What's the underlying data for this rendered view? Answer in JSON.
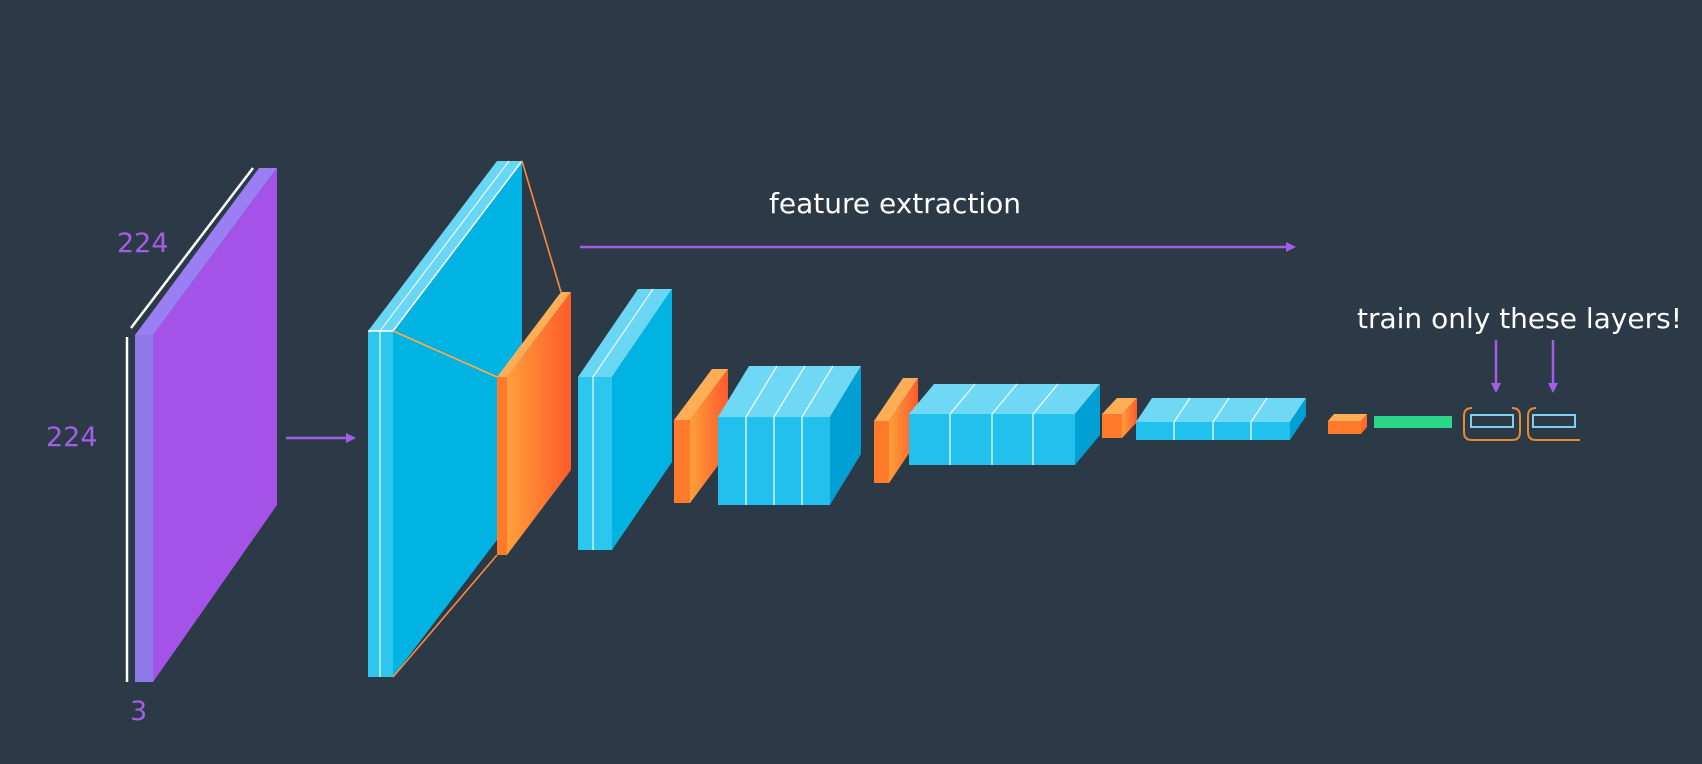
{
  "diagram": {
    "input": {
      "width_label": "224",
      "height_label": "224",
      "depth_label": "3"
    },
    "feature_label": "feature extraction",
    "train_label": "train only these layers!"
  },
  "colors": {
    "background": "#2c3a47",
    "input_layer": "#a452e8",
    "conv_layer": "#00b3e3",
    "pool_layer": "#ff7a2f",
    "dense_layer": "#2bd686",
    "arrow": "#a45de4",
    "label_text": "#ffffff"
  }
}
